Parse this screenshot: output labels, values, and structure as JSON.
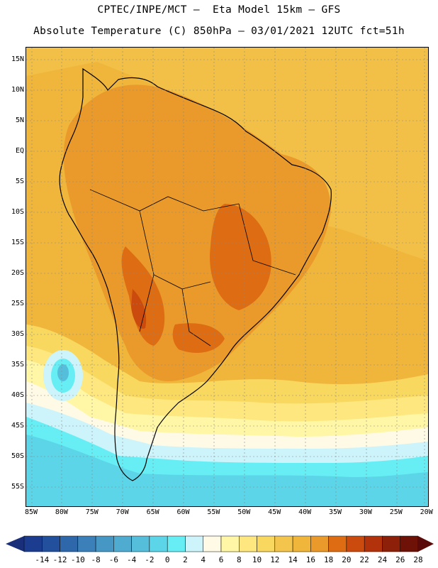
{
  "header": {
    "line1": "CPTEC/INPE/MCT –  Eta Model 15km – GFS",
    "line2": "Absolute Temperature (C) 850hPa – 03/01/2021 12UTC fct=51h"
  },
  "latitude_labels": [
    "15N",
    "10N",
    "5N",
    "EQ",
    "5S",
    "10S",
    "15S",
    "20S",
    "25S",
    "30S",
    "35S",
    "40S",
    "45S",
    "50S",
    "55S"
  ],
  "longitude_labels": [
    "85W",
    "80W",
    "75W",
    "70W",
    "65W",
    "60W",
    "55W",
    "50W",
    "45W",
    "40W",
    "35W",
    "30W",
    "25W",
    "20W"
  ],
  "colorbar": {
    "labels": [
      "-14",
      "-12",
      "-10",
      "-8",
      "-6",
      "-4",
      "-2",
      "0",
      "2",
      "4",
      "6",
      "8",
      "10",
      "12",
      "14",
      "16",
      "18",
      "20",
      "22",
      "24",
      "26",
      "28"
    ],
    "colors": [
      "#1c3d8f",
      "#23509c",
      "#2e68aa",
      "#3b80b8",
      "#4697c4",
      "#4fabd0",
      "#55bedb",
      "#5bd5e7",
      "#66eef4",
      "#cdf4fa",
      "#fffae6",
      "#fff7a6",
      "#fde77e",
      "#f9d860",
      "#f4c54c",
      "#f0b63c",
      "#ea9a2a",
      "#dd6c12",
      "#cb4b0e",
      "#b2320b",
      "#8d2009",
      "#6e1208"
    ]
  }
}
